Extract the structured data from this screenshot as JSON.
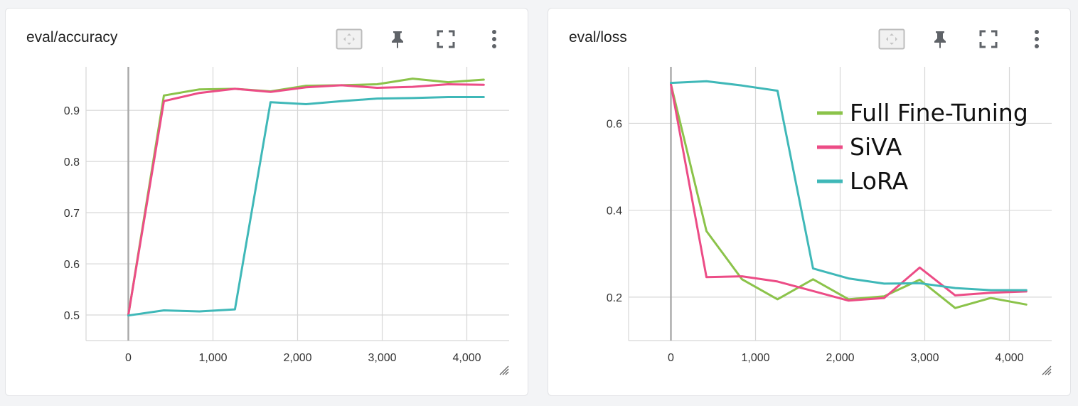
{
  "colors": {
    "full_fine_tuning": "#8bc34a",
    "siva": "#ec4c86",
    "lora": "#3fb8b8",
    "grid": "#d7d7d7",
    "zero_axis": "#a8a8a8",
    "icon": "#5f6368"
  },
  "icons": {
    "fit": "fit-domain-icon",
    "pin": "pin-icon",
    "fullscreen": "fullscreen-icon",
    "menu": "more-vert-icon",
    "resize": "resize-handle-icon"
  },
  "legend": {
    "items": [
      {
        "label": "Full Fine-Tuning",
        "color": "#8bc34a"
      },
      {
        "label": "SiVA",
        "color": "#ec4c86"
      },
      {
        "label": "LoRA",
        "color": "#3fb8b8"
      }
    ]
  },
  "chart_data": [
    {
      "type": "line",
      "title": "eval/accuracy",
      "xlabel": "",
      "ylabel": "",
      "xlim": [
        -500,
        4500
      ],
      "ylim": [
        0.45,
        0.985
      ],
      "xticks": [
        0,
        1000,
        2000,
        3000,
        4000
      ],
      "xtick_labels": [
        "0",
        "1,000",
        "2,000",
        "3,000",
        "4,000"
      ],
      "yticks": [
        0.5,
        0.6,
        0.7,
        0.8,
        0.9
      ],
      "ytick_labels": [
        "0.5",
        "0.6",
        "0.7",
        "0.8",
        "0.9"
      ],
      "grid": true,
      "series": [
        {
          "name": "Full Fine-Tuning",
          "color": "#8bc34a",
          "x": [
            0,
            420,
            840,
            1260,
            1680,
            2100,
            2520,
            2940,
            3360,
            3780,
            4200
          ],
          "y": [
            0.5,
            0.929,
            0.941,
            0.942,
            0.937,
            0.948,
            0.949,
            0.951,
            0.962,
            0.955,
            0.96
          ]
        },
        {
          "name": "SiVA",
          "color": "#ec4c86",
          "x": [
            0,
            420,
            840,
            1260,
            1680,
            2100,
            2520,
            2940,
            3360,
            3780,
            4200
          ],
          "y": [
            0.5,
            0.918,
            0.934,
            0.942,
            0.936,
            0.945,
            0.949,
            0.944,
            0.946,
            0.951,
            0.95
          ]
        },
        {
          "name": "LoRA",
          "color": "#3fb8b8",
          "x": [
            0,
            420,
            840,
            1260,
            1680,
            2100,
            2520,
            2940,
            3360,
            3780,
            4200
          ],
          "y": [
            0.499,
            0.509,
            0.507,
            0.511,
            0.916,
            0.912,
            0.918,
            0.923,
            0.924,
            0.926,
            0.926
          ]
        }
      ]
    },
    {
      "type": "line",
      "title": "eval/loss",
      "xlabel": "",
      "ylabel": "",
      "xlim": [
        -500,
        4500
      ],
      "ylim": [
        0.1,
        0.73
      ],
      "xticks": [
        0,
        1000,
        2000,
        3000,
        4000
      ],
      "xtick_labels": [
        "0",
        "1,000",
        "2,000",
        "3,000",
        "4,000"
      ],
      "yticks": [
        0.2,
        0.4,
        0.6
      ],
      "ytick_labels": [
        "0.2",
        "0.4",
        "0.6"
      ],
      "grid": true,
      "legend_placement": "top-right",
      "series": [
        {
          "name": "Full Fine-Tuning",
          "color": "#8bc34a",
          "x": [
            0,
            420,
            840,
            1260,
            1680,
            2100,
            2520,
            2940,
            3360,
            3780,
            4200
          ],
          "y": [
            0.69,
            0.352,
            0.241,
            0.195,
            0.241,
            0.195,
            0.202,
            0.24,
            0.175,
            0.198,
            0.183
          ]
        },
        {
          "name": "SiVA",
          "color": "#ec4c86",
          "x": [
            0,
            420,
            840,
            1260,
            1680,
            2100,
            2520,
            2940,
            3360,
            3780,
            4200
          ],
          "y": [
            0.69,
            0.246,
            0.248,
            0.236,
            0.214,
            0.192,
            0.198,
            0.268,
            0.204,
            0.21,
            0.213
          ]
        },
        {
          "name": "LoRA",
          "color": "#3fb8b8",
          "x": [
            0,
            420,
            840,
            1260,
            1680,
            2100,
            2520,
            2940,
            3360,
            3780,
            4200
          ],
          "y": [
            0.693,
            0.697,
            0.687,
            0.675,
            0.266,
            0.243,
            0.231,
            0.232,
            0.221,
            0.216,
            0.216
          ]
        }
      ]
    }
  ]
}
